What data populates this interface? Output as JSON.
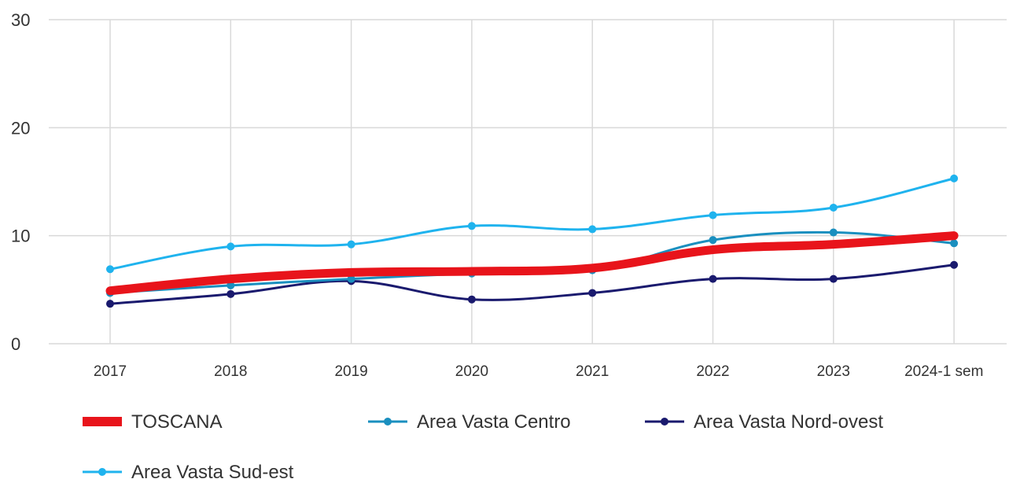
{
  "chart_data": {
    "type": "line",
    "title": "",
    "xlabel": "",
    "ylabel": "",
    "categories": [
      "2017",
      "2018",
      "2019",
      "2020",
      "2021",
      "2022",
      "2023",
      "2024-1 sem"
    ],
    "yticks": [
      "0",
      "10",
      "20",
      "30"
    ],
    "ylim": [
      0,
      30
    ],
    "grid": true,
    "legend_position": "bottom",
    "series": [
      {
        "name": "TOSCANA",
        "values": [
          4.9,
          6.0,
          6.6,
          6.7,
          7.0,
          8.7,
          9.2,
          10.0
        ],
        "color": "#e8141b",
        "marker": false
      },
      {
        "name": "Area Vasta Centro",
        "values": [
          4.7,
          5.4,
          6.0,
          6.5,
          6.8,
          9.6,
          10.3,
          9.3
        ],
        "color": "#1a8fbf",
        "marker": true
      },
      {
        "name": "Area Vasta Nord-ovest",
        "values": [
          3.7,
          4.6,
          5.8,
          4.1,
          4.7,
          6.0,
          6.0,
          7.3
        ],
        "color": "#1a1a6e",
        "marker": true
      },
      {
        "name": "Area Vasta Sud-est",
        "values": [
          6.9,
          9.0,
          9.2,
          10.9,
          10.6,
          11.9,
          12.6,
          15.3
        ],
        "color": "#1fb3ee",
        "marker": true
      }
    ]
  }
}
